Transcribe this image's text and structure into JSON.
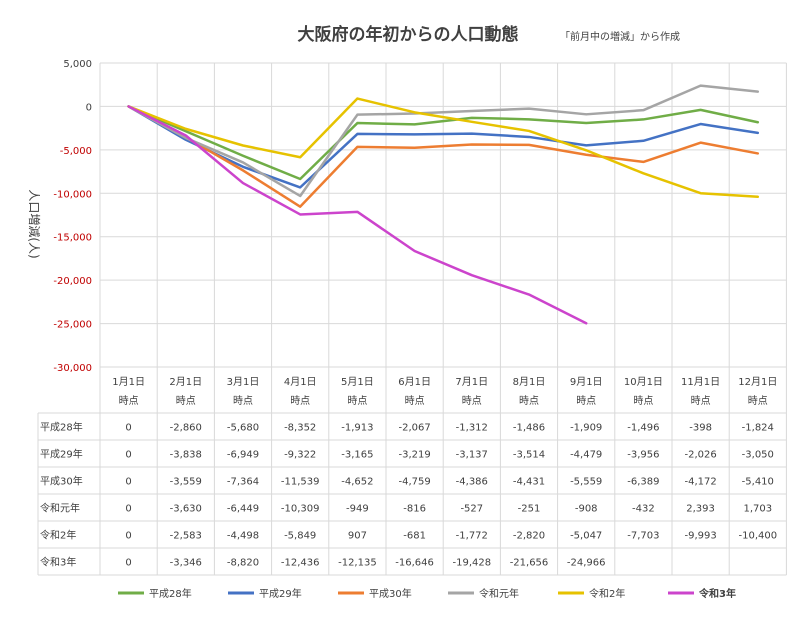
{
  "chart_data": {
    "type": "line",
    "title": "大阪府の年初からの人口動態",
    "subtitle": "「前月中の増減」から作成",
    "ylabel": "人口増減(人)",
    "ylim": [
      -30000,
      5000
    ],
    "yticks": [
      "5,000",
      "0",
      "-5,000",
      "-10,000",
      "-15,000",
      "-20,000",
      "-25,000",
      "-30,000"
    ],
    "ytick_values": [
      5000,
      0,
      -5000,
      -10000,
      -15000,
      -20000,
      -25000,
      -30000
    ],
    "categories": [
      "1月1日",
      "2月1日",
      "3月1日",
      "4月1日",
      "5月1日",
      "6月1日",
      "7月1日",
      "8月1日",
      "9月1日",
      "10月1日",
      "11月1日",
      "12月1日"
    ],
    "category_sub": "時点",
    "grid": true,
    "legend_position": "bottom",
    "series": [
      {
        "name": "平成28年",
        "color": "#70ad47",
        "values": [
          0,
          -2860,
          -5680,
          -8352,
          -1913,
          -2067,
          -1312,
          -1486,
          -1909,
          -1496,
          -398,
          -1824
        ],
        "labels": [
          "0",
          "-2,860",
          "-5,680",
          "-8,352",
          "-1,913",
          "-2,067",
          "-1,312",
          "-1,486",
          "-1,909",
          "-1,496",
          "-398",
          "-1,824"
        ]
      },
      {
        "name": "平成29年",
        "color": "#4472c4",
        "values": [
          0,
          -3838,
          -6949,
          -9322,
          -3165,
          -3219,
          -3137,
          -3514,
          -4479,
          -3956,
          -2026,
          -3050
        ],
        "labels": [
          "0",
          "-3,838",
          "-6,949",
          "-9,322",
          "-3,165",
          "-3,219",
          "-3,137",
          "-3,514",
          "-4,479",
          "-3,956",
          "-2,026",
          "-3,050"
        ]
      },
      {
        "name": "平成30年",
        "color": "#ed7d31",
        "values": [
          0,
          -3559,
          -7364,
          -11539,
          -4652,
          -4759,
          -4386,
          -4431,
          -5559,
          -6389,
          -4172,
          -5410
        ],
        "labels": [
          "0",
          "-3,559",
          "-7,364",
          "-11,539",
          "-4,652",
          "-4,759",
          "-4,386",
          "-4,431",
          "-5,559",
          "-6,389",
          "-4,172",
          "-5,410"
        ]
      },
      {
        "name": "令和元年",
        "color": "#a5a5a5",
        "values": [
          0,
          -3630,
          -6449,
          -10309,
          -949,
          -816,
          -527,
          -251,
          -908,
          -432,
          2393,
          1703
        ],
        "labels": [
          "0",
          "-3,630",
          "-6,449",
          "-10,309",
          "-949",
          "-816",
          "-527",
          "-251",
          "-908",
          "-432",
          "2,393",
          "1,703"
        ]
      },
      {
        "name": "令和2年",
        "color": "#e6c200",
        "values": [
          0,
          -2583,
          -4498,
          -5849,
          907,
          -681,
          -1772,
          -2820,
          -5047,
          -7703,
          -9993,
          -10400
        ],
        "labels": [
          "0",
          "-2,583",
          "-4,498",
          "-5,849",
          "907",
          "-681",
          "-1,772",
          "-2,820",
          "-5,047",
          "-7,703",
          "-9,993",
          "-10,400"
        ]
      },
      {
        "name": "令和3年",
        "color": "#cc44cc",
        "values": [
          0,
          -3346,
          -8820,
          -12436,
          -12135,
          -16646,
          -19428,
          -21656,
          -24966,
          null,
          null,
          null
        ],
        "labels": [
          "0",
          "-3,346",
          "-8,820",
          "-12,436",
          "-12,135",
          "-16,646",
          "-19,428",
          "-21,656",
          "-24,966",
          "",
          "",
          ""
        ]
      }
    ]
  }
}
